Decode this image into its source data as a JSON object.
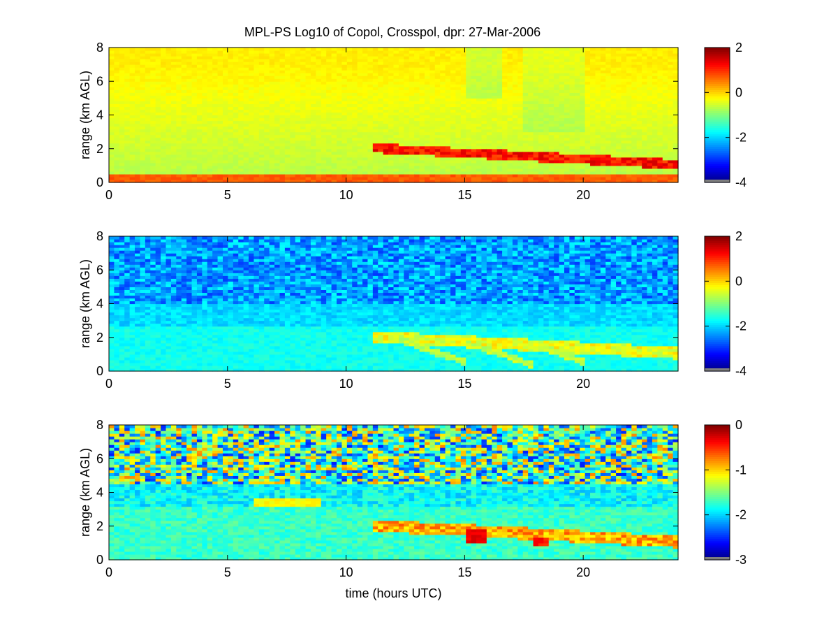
{
  "figure": {
    "title": "MPL-PS Log10 of Copol, Crosspol, dpr: 27-Mar-2006"
  },
  "chart_data": [
    {
      "type": "heatmap",
      "title": "MPL-PS Log10 of Copol, Crosspol, dpr: 27-Mar-2006",
      "xlabel": "",
      "ylabel": "range (km AGL)",
      "xlim": [
        0,
        24
      ],
      "ylim": [
        0,
        8
      ],
      "x_ticks": [
        0,
        5,
        10,
        15,
        20
      ],
      "y_ticks": [
        0,
        2,
        4,
        6,
        8
      ],
      "colorbar": {
        "clim": [
          -4,
          2
        ],
        "ticks": [
          2,
          0,
          -2,
          -4
        ],
        "colormap": "jet"
      },
      "grid": false
    },
    {
      "type": "heatmap",
      "title": "",
      "xlabel": "",
      "ylabel": "range (km AGL)",
      "xlim": [
        0,
        24
      ],
      "ylim": [
        0,
        8
      ],
      "x_ticks": [
        0,
        5,
        10,
        15,
        20
      ],
      "y_ticks": [
        0,
        2,
        4,
        6,
        8
      ],
      "colorbar": {
        "clim": [
          -4,
          2
        ],
        "ticks": [
          2,
          0,
          -2,
          -4
        ],
        "colormap": "jet"
      },
      "grid": false
    },
    {
      "type": "heatmap",
      "title": "",
      "xlabel": "time (hours UTC)",
      "ylabel": "range (km AGL)",
      "xlim": [
        0,
        24
      ],
      "ylim": [
        0,
        8
      ],
      "x_ticks": [
        0,
        5,
        10,
        15,
        20
      ],
      "y_ticks": [
        0,
        2,
        4,
        6,
        8
      ],
      "colorbar": {
        "clim": [
          -3,
          0
        ],
        "ticks": [
          0,
          -1,
          -2,
          -3
        ],
        "colormap": "jet"
      },
      "grid": false
    }
  ]
}
